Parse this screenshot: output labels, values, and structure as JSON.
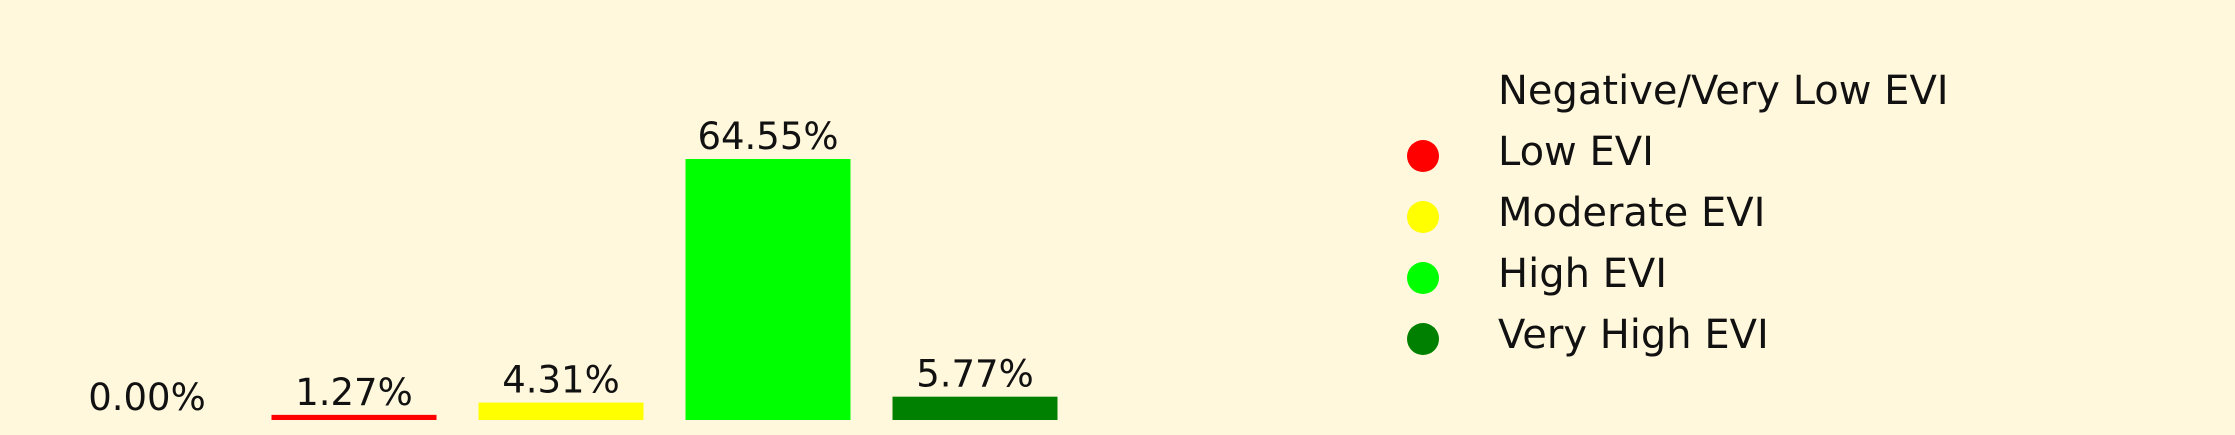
{
  "chart_data": {
    "type": "bar",
    "categories": [
      "Negative/Very Low EVI",
      "Low EVI",
      "Moderate EVI",
      "High EVI",
      "Very High EVI"
    ],
    "values": [
      0.0,
      1.27,
      4.31,
      64.55,
      5.77
    ],
    "value_labels": [
      "0.00%",
      "1.27%",
      "4.31%",
      "64.55%",
      "5.77%"
    ],
    "colors": [
      "#fff8dc",
      "#ff0000",
      "#ffff00",
      "#00ff00",
      "#008000"
    ],
    "ylim": [
      0,
      64.55
    ],
    "grid": false,
    "legend": {
      "position": "right",
      "items": [
        {
          "label": "Negative/Very Low EVI",
          "color": null
        },
        {
          "label": "Low EVI",
          "color": "#ff0000"
        },
        {
          "label": "Moderate EVI",
          "color": "#ffff00"
        },
        {
          "label": "High EVI",
          "color": "#00ff00"
        },
        {
          "label": "Very High EVI",
          "color": "#008000"
        }
      ]
    },
    "background": "#fff8dc"
  }
}
